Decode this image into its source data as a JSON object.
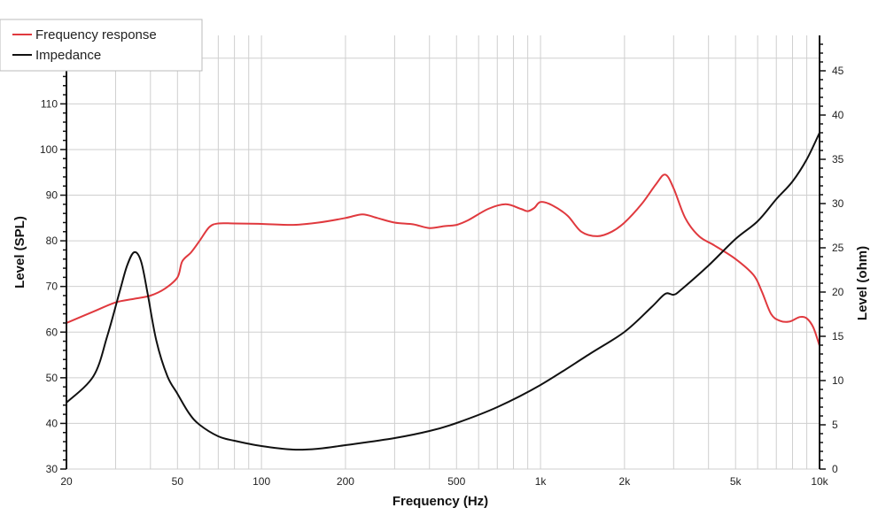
{
  "chart_data": {
    "type": "line",
    "xlabel": "Frequency (Hz)",
    "ylabel_left": "Level (SPL)",
    "ylabel_right": "Level (ohm)",
    "x_scale": "log",
    "xlim": [
      20,
      10000
    ],
    "ylim_left": [
      30,
      125
    ],
    "ylim_right": [
      0,
      49
    ],
    "grid": true,
    "legend_position": "top-left",
    "x_ticks": [
      {
        "value": 20,
        "label": "20"
      },
      {
        "value": 50,
        "label": "50"
      },
      {
        "value": 100,
        "label": "100"
      },
      {
        "value": 200,
        "label": "200"
      },
      {
        "value": 500,
        "label": "500"
      },
      {
        "value": 1000,
        "label": "1k"
      },
      {
        "value": 2000,
        "label": "2k"
      },
      {
        "value": 5000,
        "label": "5k"
      },
      {
        "value": 10000,
        "label": "10k"
      }
    ],
    "y_ticks_left": [
      30,
      40,
      50,
      60,
      70,
      80,
      90,
      100,
      110,
      120
    ],
    "y_ticks_right": [
      0,
      5,
      10,
      15,
      20,
      25,
      30,
      35,
      40,
      45
    ],
    "series": [
      {
        "name": "Frequency response",
        "color": "#e0393e",
        "axis": "left",
        "points": [
          [
            20,
            62
          ],
          [
            25,
            64.5
          ],
          [
            30,
            66.5
          ],
          [
            35,
            67.3
          ],
          [
            40,
            68
          ],
          [
            45,
            69.5
          ],
          [
            50,
            72
          ],
          [
            52,
            75.5
          ],
          [
            56,
            77.5
          ],
          [
            60,
            80
          ],
          [
            65,
            83
          ],
          [
            70,
            83.8
          ],
          [
            80,
            83.8
          ],
          [
            100,
            83.7
          ],
          [
            130,
            83.5
          ],
          [
            160,
            84
          ],
          [
            200,
            85
          ],
          [
            230,
            85.8
          ],
          [
            260,
            85
          ],
          [
            300,
            84
          ],
          [
            350,
            83.6
          ],
          [
            400,
            82.8
          ],
          [
            450,
            83.2
          ],
          [
            500,
            83.5
          ],
          [
            550,
            84.5
          ],
          [
            650,
            87
          ],
          [
            750,
            88
          ],
          [
            850,
            87
          ],
          [
            900,
            86.5
          ],
          [
            950,
            87.2
          ],
          [
            1000,
            88.5
          ],
          [
            1100,
            87.8
          ],
          [
            1250,
            85.5
          ],
          [
            1400,
            82
          ],
          [
            1600,
            81
          ],
          [
            1800,
            82
          ],
          [
            2000,
            84
          ],
          [
            2300,
            88
          ],
          [
            2600,
            92.5
          ],
          [
            2800,
            94.5
          ],
          [
            3000,
            91.5
          ],
          [
            3300,
            85
          ],
          [
            3700,
            81
          ],
          [
            4200,
            79
          ],
          [
            5000,
            76
          ],
          [
            5800,
            72.5
          ],
          [
            6200,
            69
          ],
          [
            6700,
            64
          ],
          [
            7200,
            62.5
          ],
          [
            7800,
            62.3
          ],
          [
            8500,
            63.3
          ],
          [
            9000,
            63
          ],
          [
            9500,
            61
          ],
          [
            10000,
            57
          ]
        ]
      },
      {
        "name": "Impedance",
        "color": "#111111",
        "axis": "right",
        "points": [
          [
            20,
            7.5
          ],
          [
            25,
            10.5
          ],
          [
            28,
            15
          ],
          [
            31,
            20
          ],
          [
            33,
            23
          ],
          [
            35,
            24.5
          ],
          [
            37,
            23.5
          ],
          [
            39,
            20
          ],
          [
            42,
            14.5
          ],
          [
            46,
            10.5
          ],
          [
            50,
            8.5
          ],
          [
            55,
            6.3
          ],
          [
            60,
            5
          ],
          [
            70,
            3.7
          ],
          [
            80,
            3.2
          ],
          [
            100,
            2.6
          ],
          [
            130,
            2.2
          ],
          [
            160,
            2.3
          ],
          [
            200,
            2.7
          ],
          [
            300,
            3.5
          ],
          [
            400,
            4.3
          ],
          [
            500,
            5.2
          ],
          [
            700,
            7
          ],
          [
            1000,
            9.5
          ],
          [
            1500,
            13
          ],
          [
            2000,
            15.5
          ],
          [
            2500,
            18.3
          ],
          [
            2800,
            19.8
          ],
          [
            3000,
            19.7
          ],
          [
            3200,
            20.3
          ],
          [
            4000,
            23
          ],
          [
            5000,
            26
          ],
          [
            6000,
            28
          ],
          [
            7000,
            30.5
          ],
          [
            8000,
            32.5
          ],
          [
            9000,
            35
          ],
          [
            10000,
            38
          ]
        ]
      }
    ]
  }
}
